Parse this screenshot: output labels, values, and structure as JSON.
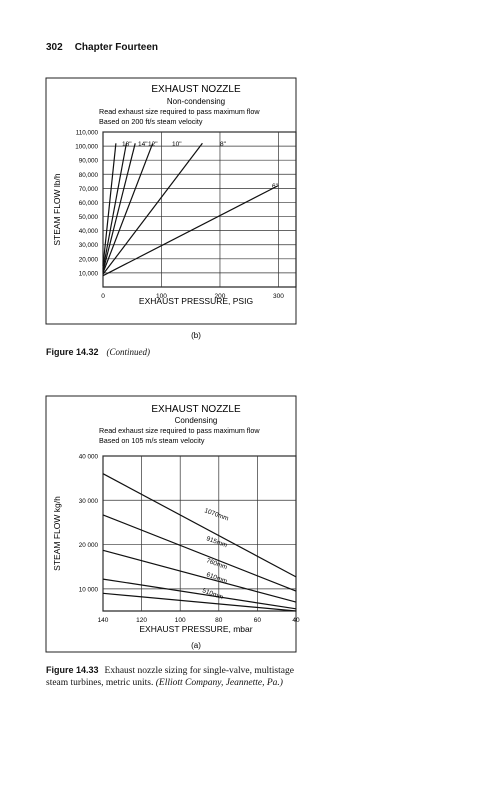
{
  "page": {
    "number": "302",
    "chapter": "Chapter Fourteen"
  },
  "captions": {
    "fig1432_label": "Figure 14.32",
    "fig1432_text": "(Continued)",
    "fig1433_label": "Figure 14.33",
    "fig1433_text": "Exhaust nozzle sizing for single-valve, multistage steam turbines, metric units.",
    "fig1433_source": "(Elliott Company, Jeannette, Pa.)"
  },
  "chart_data": [
    {
      "type": "line",
      "panel_label": "(b)",
      "title": "EXHAUST NOZZLE",
      "subtitle": "Non-condensing",
      "notes": [
        "Read exhaust size required to pass maximum flow",
        "Based on 200 ft/s steam velocity"
      ],
      "xlabel": "EXHAUST PRESSURE, PSIG",
      "ylabel": "STEAM FLOW lb/h",
      "xlim": [
        0,
        330
      ],
      "ylim": [
        0,
        110000
      ],
      "xticks": [
        "0",
        "100",
        "200",
        "300"
      ],
      "yticks": [
        "10,000",
        "20,000",
        "30,000",
        "40,000",
        "50,000",
        "60,000",
        "70,000",
        "80,000",
        "90,000",
        "100,000",
        "110,000"
      ],
      "grid": true,
      "series": [
        {
          "name": "18\"",
          "points": [
            [
              0,
              15000
            ],
            [
              22,
              102000
            ]
          ]
        },
        {
          "name": "14\"",
          "points": [
            [
              0,
              12500
            ],
            [
              40,
              102000
            ]
          ]
        },
        {
          "name": "12\"",
          "points": [
            [
              0,
              11000
            ],
            [
              55,
              102000
            ]
          ]
        },
        {
          "name": "10\"",
          "points": [
            [
              0,
              10000
            ],
            [
              85,
              102000
            ]
          ]
        },
        {
          "name": "8\"",
          "points": [
            [
              0,
              9000
            ],
            [
              170,
              102000
            ]
          ]
        },
        {
          "name": "6\"",
          "points": [
            [
              0,
              8000
            ],
            [
              300,
              72000
            ]
          ]
        }
      ]
    },
    {
      "type": "line",
      "panel_label": "(a)",
      "title": "EXHAUST NOZZLE",
      "subtitle": "Condensing",
      "notes": [
        "Read exhaust size required to pass maximum flow",
        "Based on 105 m/s steam velocity"
      ],
      "xlabel": "EXHAUST PRESSURE, mbar",
      "ylabel": "STEAM FLOW kg/h",
      "x_reversed": true,
      "xlim": [
        140,
        40
      ],
      "ylim": [
        5000,
        40000
      ],
      "xticks": [
        "140",
        "120",
        "100",
        "80",
        "60",
        "40"
      ],
      "yticks": [
        "10 000",
        "20 000",
        "30 000",
        "40 000"
      ],
      "grid": true,
      "series": [
        {
          "name": "1070mm",
          "points": [
            [
              140,
              36000
            ],
            [
              40,
              12700
            ]
          ]
        },
        {
          "name": "915mm",
          "points": [
            [
              140,
              26700
            ],
            [
              40,
              9500
            ]
          ]
        },
        {
          "name": "760mm",
          "points": [
            [
              140,
              18700
            ],
            [
              40,
              7000
            ]
          ]
        },
        {
          "name": "610mm",
          "points": [
            [
              140,
              12200
            ],
            [
              40,
              5500
            ]
          ]
        },
        {
          "name": "510mm",
          "points": [
            [
              140,
              9000
            ],
            [
              40,
              5000
            ]
          ]
        }
      ]
    }
  ]
}
